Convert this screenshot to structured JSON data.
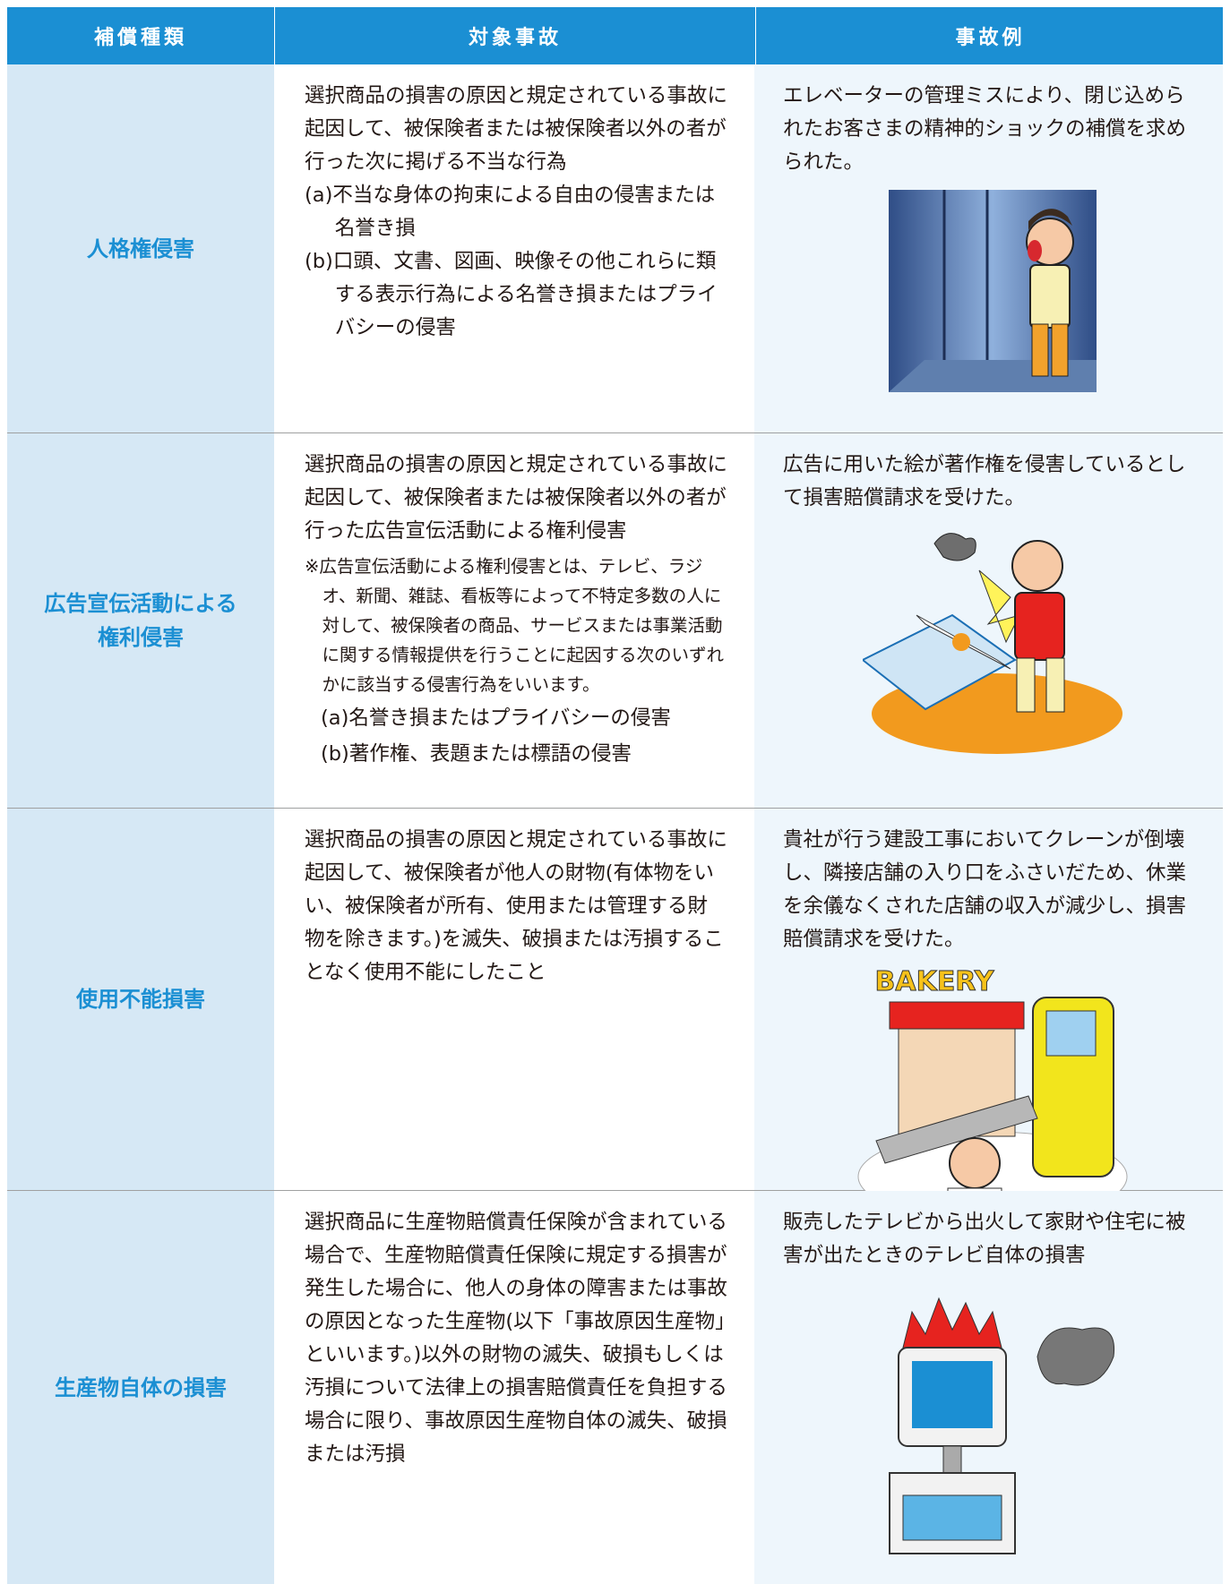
{
  "table": {
    "header": [
      "補償種類",
      "対象事故",
      "事故例"
    ],
    "rows": [
      {
        "type": [
          "人格権侵害"
        ],
        "description": "選択商品の損害の原因と規定されている事故に起因して、被保険者または被保険者以外の者が行った次に掲げる不当な行為",
        "items": [
          "(a)不当な身体の拘束による自由の侵害または名誉き損",
          "(b)口頭、文書、図画、映像その他これらに類する表示行為による名誉き損またはプライバシーの侵害"
        ],
        "example": "エレベーターの管理ミスにより、閉じ込められたお客さまの精神的ショックの補償を求められた。"
      },
      {
        "type": [
          "広告宣伝活動による",
          "権利侵害"
        ],
        "description": "選択商品の損害の原因と規定されている事故に起因して、被保険者または被保険者以外の者が行った広告宣伝活動による権利侵害",
        "note": "※広告宣伝活動による権利侵害とは、テレビ、ラジオ、新聞、雑誌、看板等によって不特定多数の人に対して、被保険者の商品、サービスまたは事業活動に関する情報提供を行うことに起因する次のいずれかに該当する侵害行為をいいます。",
        "items": [
          "(a)名誉き損またはプライバシーの侵害",
          "(b)著作権、表題または標語の侵害"
        ],
        "example": "広告に用いた絵が著作権を侵害しているとして損害賠償請求を受けた。"
      },
      {
        "type": [
          "使用不能損害"
        ],
        "description": "選択商品の損害の原因と規定されている事故に起因して、被保険者が他人の財物(有体物をいい、被保険者が所有、使用または管理する財物を除きます。)を滅失、破損または汚損することなく使用不能にしたこと",
        "example": "貴社が行う建設工事においてクレーンが倒壊し、隣接店舗の入り口をふさいだため、休業を余儀なくされた店舗の収入が減少し、損害賠償請求を受けた。",
        "illustration_text": "BAKERY"
      },
      {
        "type": [
          "生産物自体の損害"
        ],
        "description": "選択商品に生産物賠償責任保険が含まれている場合で、生産物賠償責任保険に規定する損害が発生した場合に、他人の身体の障害または事故の原因となった生産物(以下「事故原因生産物」といいます。)以外の財物の滅失、破損もしくは汚損について法律上の損害賠償責任を負担する場合に限り、事故原因生産物自体の滅失、破損または汚損",
        "example": "販売したテレビから出火して家財や住宅に被害が出たときのテレビ自体の損害"
      }
    ]
  }
}
